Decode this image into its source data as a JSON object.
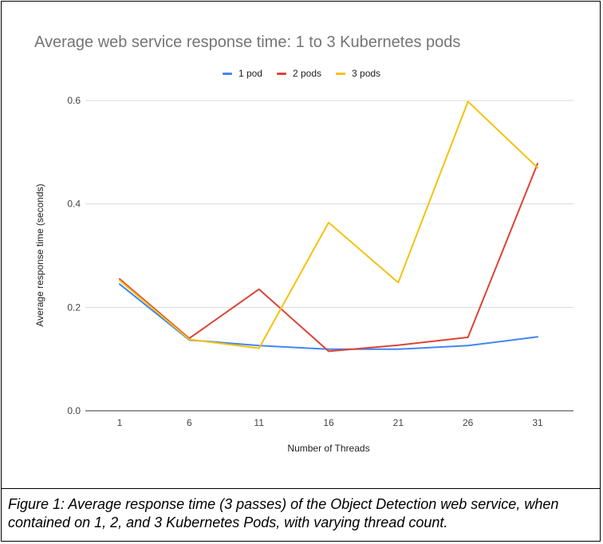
{
  "chart_data": {
    "type": "line",
    "title": "Average web service response time: 1 to 3 Kubernetes pods",
    "xlabel": "Number of Threads",
    "ylabel": "Average response time (seconds)",
    "x": [
      1,
      6,
      11,
      16,
      21,
      26,
      31
    ],
    "y_ticks": [
      "0.0",
      "0.2",
      "0.4",
      "0.6"
    ],
    "ylim": [
      0,
      0.6
    ],
    "grid": true,
    "legend_position": "top",
    "series": [
      {
        "name": "1 pod",
        "color": "#4285f4",
        "values": [
          0.245,
          0.137,
          0.126,
          0.119,
          0.119,
          0.126,
          0.143
        ]
      },
      {
        "name": "2 pods",
        "color": "#db4437",
        "values": [
          0.255,
          0.14,
          0.235,
          0.115,
          0.127,
          0.142,
          0.478
        ]
      },
      {
        "name": "3 pods",
        "color": "#f4c20d",
        "values": [
          0.252,
          0.138,
          0.121,
          0.364,
          0.248,
          0.598,
          0.47
        ]
      }
    ]
  },
  "caption": "Figure 1: Average response time (3 passes) of the Object Detection web service, when contained on 1, 2, and 3 Kubernetes Pods, with varying thread count."
}
